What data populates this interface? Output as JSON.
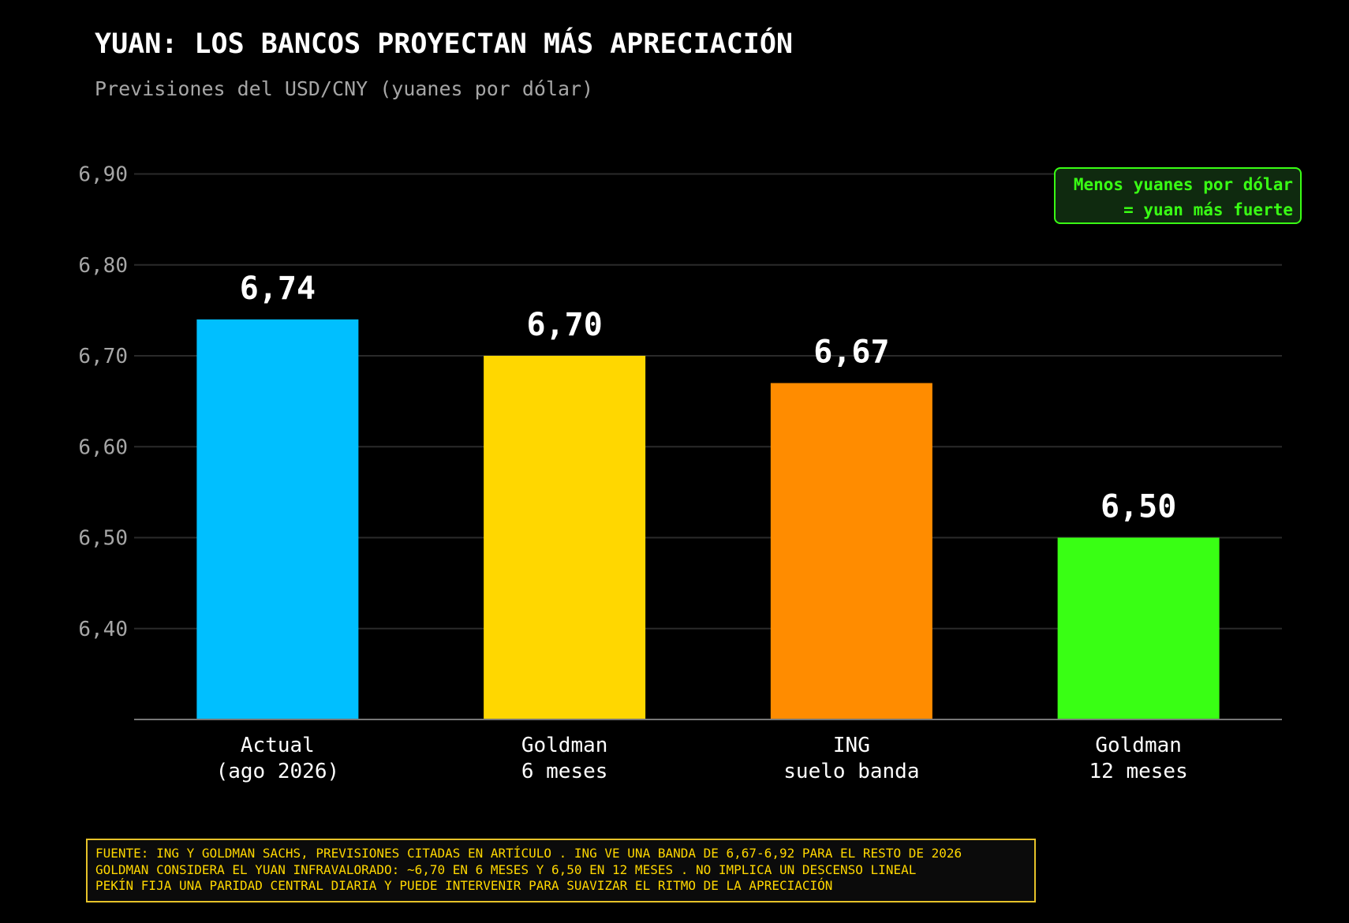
{
  "header": {
    "title": "YUAN: LOS BANCOS PROYECTAN MÁS APRECIACIÓN",
    "subtitle": "Previsiones del USD/CNY (yuanes por dólar)"
  },
  "annotation": {
    "line1": "Menos yuanes por dólar",
    "line2": "= yuan más fuerte",
    "color": "#39ff14"
  },
  "footer": {
    "line1": "FUENTE: ING Y GOLDMAN SACHS, PREVISIONES CITADAS EN ARTÍCULO . ING VE UNA BANDA DE 6,67-6,92 PARA EL RESTO DE 2026",
    "line2": "GOLDMAN CONSIDERA EL YUAN INFRAVALORADO: ~6,70 EN 6 MESES Y 6,50 EN 12 MESES . NO IMPLICA UN DESCENSO LINEAL",
    "line3": "PEKÍN FIJA UNA PARIDAD CENTRAL DIARIA Y PUEDE INTERVENIR PARA SUAVIZAR EL RITMO DE LA APRECIACIÓN"
  },
  "chart_data": {
    "type": "bar",
    "title": "YUAN: LOS BANCOS PROYECTAN MÁS APRECIACIÓN",
    "subtitle": "Previsiones del USD/CNY (yuanes por dólar)",
    "categories": [
      [
        "Actual",
        "(ago 2026)"
      ],
      [
        "Goldman",
        "6 meses"
      ],
      [
        "ING",
        "suelo banda"
      ],
      [
        "Goldman",
        "12 meses"
      ]
    ],
    "values": [
      6.74,
      6.7,
      6.67,
      6.5
    ],
    "value_labels": [
      "6,74",
      "6,70",
      "6,67",
      "6,50"
    ],
    "colors": [
      "#00bfff",
      "#ffd700",
      "#ff8c00",
      "#39ff14"
    ],
    "yticks": [
      6.4,
      6.5,
      6.6,
      6.7,
      6.8,
      6.9
    ],
    "ytick_labels": [
      "6,40",
      "6,50",
      "6,60",
      "6,70",
      "6,80",
      "6,90"
    ],
    "ylim": [
      6.3,
      6.93
    ],
    "xlabel": "",
    "ylabel": "",
    "grid": true,
    "legend": "none"
  }
}
